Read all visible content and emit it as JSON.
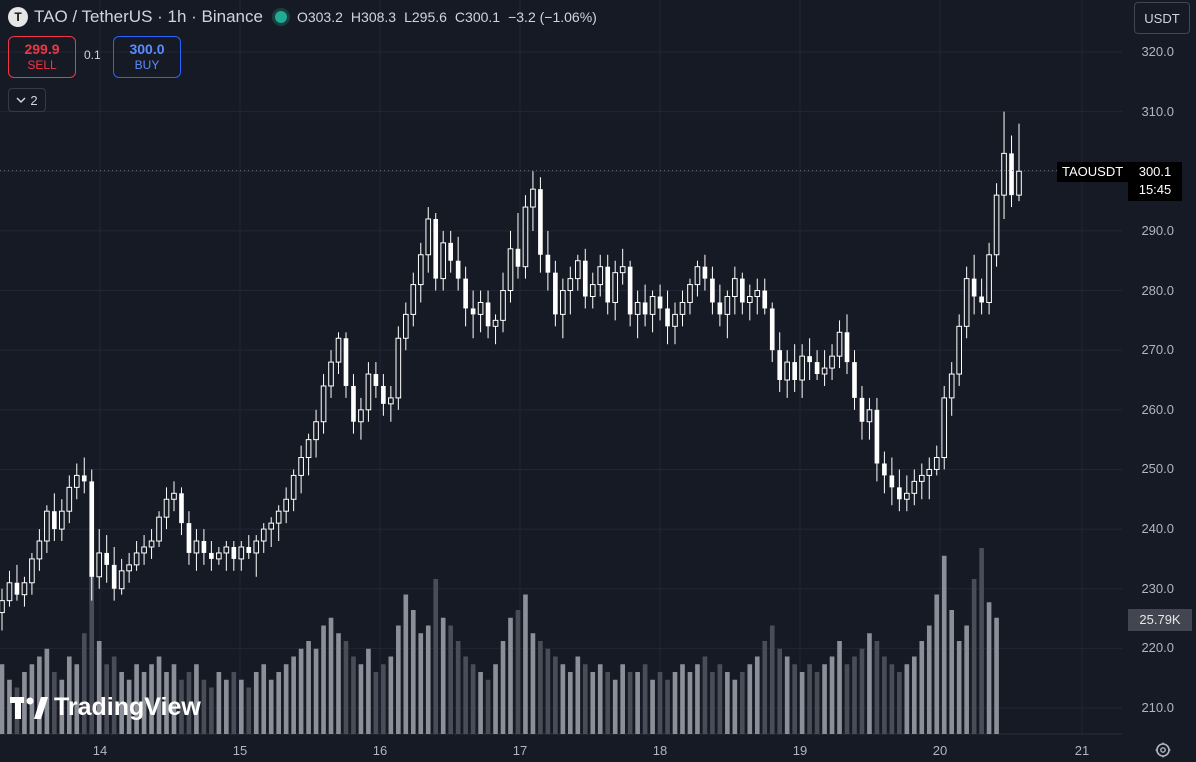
{
  "header": {
    "symbol_logo": "T",
    "title": "TAO / TetherUS · 1h · Binance",
    "market_status_icon": "green-dot-icon",
    "ohlc": {
      "o_label": "O",
      "o": "303.2",
      "h_label": "H",
      "h": "308.3",
      "l_label": "L",
      "l": "295.6",
      "c_label": "C",
      "c": "300.1",
      "change": "−3.2 (−1.06%)"
    }
  },
  "trade": {
    "sell_price": "299.9",
    "sell_label": "SELL",
    "spread": "0.1",
    "buy_price": "300.0",
    "buy_label": "BUY"
  },
  "indicators_toggle": {
    "icon": "chevron-down-icon",
    "count": "2"
  },
  "currency_selector": "USDT",
  "price_axis": [
    "320.0",
    "310.0",
    "300.0",
    "290.0",
    "280.0",
    "270.0",
    "260.0",
    "250.0",
    "240.0",
    "230.0",
    "220.0",
    "210.0"
  ],
  "time_axis": [
    "14",
    "15",
    "16",
    "17",
    "18",
    "19",
    "20",
    "21"
  ],
  "price_tag": {
    "symbol": "TAOUSDT",
    "price": "300.1",
    "countdown": "15:45"
  },
  "volume_tag": "25.79K",
  "watermark": "TradingView",
  "settings_icon": "gear-icon",
  "colors": {
    "background": "#161a25",
    "candle": "#ffffff",
    "grid": "#232733",
    "volume_dark": "#4a4d57",
    "volume_light": "#8c8f97"
  },
  "chart_data": {
    "type": "candlestick",
    "x_labels": [
      "14",
      "15",
      "16",
      "17",
      "18",
      "19",
      "20",
      "21"
    ],
    "ylim": [
      206,
      322
    ],
    "last_price": 300.1,
    "candles_ohlc": [
      [
        226,
        230,
        223,
        228
      ],
      [
        228,
        233,
        227,
        231
      ],
      [
        231,
        234,
        228,
        229
      ],
      [
        229,
        232,
        227,
        231
      ],
      [
        231,
        236,
        229,
        235
      ],
      [
        235,
        240,
        233,
        238
      ],
      [
        238,
        244,
        236,
        243
      ],
      [
        243,
        246,
        238,
        240
      ],
      [
        240,
        245,
        238,
        243
      ],
      [
        243,
        249,
        241,
        247
      ],
      [
        247,
        251,
        245,
        249
      ],
      [
        249,
        252,
        246,
        248
      ],
      [
        248,
        250,
        228,
        232
      ],
      [
        232,
        240,
        230,
        236
      ],
      [
        236,
        239,
        231,
        234
      ],
      [
        234,
        237,
        228,
        230
      ],
      [
        230,
        235,
        229,
        233
      ],
      [
        233,
        236,
        231,
        234
      ],
      [
        234,
        238,
        233,
        236
      ],
      [
        236,
        239,
        234,
        237
      ],
      [
        237,
        240,
        235,
        238
      ],
      [
        238,
        243,
        237,
        242
      ],
      [
        242,
        247,
        240,
        245
      ],
      [
        245,
        248,
        243,
        246
      ],
      [
        246,
        247,
        239,
        241
      ],
      [
        241,
        243,
        234,
        236
      ],
      [
        236,
        240,
        233,
        238
      ],
      [
        238,
        240,
        234,
        236
      ],
      [
        236,
        238,
        233,
        235
      ],
      [
        235,
        237,
        234,
        236
      ],
      [
        236,
        238,
        233,
        237
      ],
      [
        237,
        238,
        233,
        235
      ],
      [
        235,
        238,
        233,
        237
      ],
      [
        237,
        239,
        235,
        236
      ],
      [
        236,
        239,
        232,
        238
      ],
      [
        238,
        241,
        236,
        240
      ],
      [
        240,
        242,
        237,
        241
      ],
      [
        241,
        244,
        238,
        243
      ],
      [
        243,
        247,
        241,
        245
      ],
      [
        245,
        250,
        243,
        249
      ],
      [
        249,
        254,
        246,
        252
      ],
      [
        252,
        256,
        249,
        255
      ],
      [
        255,
        260,
        252,
        258
      ],
      [
        258,
        266,
        256,
        264
      ],
      [
        264,
        270,
        262,
        268
      ],
      [
        268,
        273,
        266,
        272
      ],
      [
        272,
        273,
        262,
        264
      ],
      [
        264,
        266,
        256,
        258
      ],
      [
        258,
        262,
        255,
        260
      ],
      [
        260,
        268,
        258,
        266
      ],
      [
        266,
        268,
        262,
        264
      ],
      [
        264,
        266,
        259,
        261
      ],
      [
        261,
        264,
        258,
        262
      ],
      [
        262,
        274,
        260,
        272
      ],
      [
        272,
        278,
        270,
        276
      ],
      [
        276,
        283,
        274,
        281
      ],
      [
        281,
        288,
        278,
        286
      ],
      [
        286,
        294,
        283,
        292
      ],
      [
        292,
        293,
        280,
        282
      ],
      [
        282,
        290,
        280,
        288
      ],
      [
        288,
        290,
        283,
        285
      ],
      [
        285,
        289,
        280,
        282
      ],
      [
        282,
        284,
        274,
        277
      ],
      [
        277,
        280,
        272,
        276
      ],
      [
        276,
        280,
        273,
        278
      ],
      [
        278,
        280,
        272,
        274
      ],
      [
        274,
        276,
        271,
        275
      ],
      [
        275,
        283,
        273,
        280
      ],
      [
        280,
        290,
        278,
        287
      ],
      [
        287,
        293,
        282,
        284
      ],
      [
        284,
        296,
        282,
        294
      ],
      [
        294,
        300,
        290,
        297
      ],
      [
        297,
        299,
        283,
        286
      ],
      [
        286,
        290,
        280,
        283
      ],
      [
        283,
        285,
        274,
        276
      ],
      [
        276,
        282,
        272,
        280
      ],
      [
        280,
        284,
        276,
        282
      ],
      [
        282,
        286,
        280,
        285
      ],
      [
        285,
        287,
        277,
        279
      ],
      [
        279,
        283,
        277,
        281
      ],
      [
        281,
        286,
        279,
        284
      ],
      [
        284,
        286,
        276,
        278
      ],
      [
        278,
        285,
        275,
        283
      ],
      [
        283,
        287,
        281,
        284
      ],
      [
        284,
        285,
        274,
        276
      ],
      [
        276,
        280,
        272,
        278
      ],
      [
        278,
        281,
        274,
        276
      ],
      [
        276,
        280,
        273,
        279
      ],
      [
        279,
        281,
        275,
        277
      ],
      [
        277,
        280,
        271,
        274
      ],
      [
        274,
        278,
        271,
        276
      ],
      [
        276,
        280,
        274,
        278
      ],
      [
        278,
        282,
        276,
        281
      ],
      [
        281,
        285,
        279,
        284
      ],
      [
        284,
        286,
        280,
        282
      ],
      [
        282,
        284,
        276,
        278
      ],
      [
        278,
        281,
        274,
        276
      ],
      [
        276,
        280,
        272,
        279
      ],
      [
        279,
        284,
        276,
        282
      ],
      [
        282,
        283,
        276,
        278
      ],
      [
        278,
        281,
        275,
        279
      ],
      [
        279,
        282,
        276,
        280
      ],
      [
        280,
        282,
        276,
        277
      ],
      [
        277,
        278,
        268,
        270
      ],
      [
        270,
        273,
        263,
        265
      ],
      [
        265,
        270,
        262,
        268
      ],
      [
        268,
        271,
        263,
        265
      ],
      [
        265,
        271,
        262,
        269
      ],
      [
        269,
        272,
        265,
        268
      ],
      [
        268,
        270,
        265,
        266
      ],
      [
        266,
        270,
        264,
        267
      ],
      [
        267,
        271,
        265,
        269
      ],
      [
        269,
        275,
        267,
        273
      ],
      [
        273,
        276,
        266,
        268
      ],
      [
        268,
        270,
        260,
        262
      ],
      [
        262,
        264,
        255,
        258
      ],
      [
        258,
        262,
        255,
        260
      ],
      [
        260,
        262,
        248,
        251
      ],
      [
        251,
        253,
        246,
        249
      ],
      [
        249,
        252,
        244,
        247
      ],
      [
        247,
        250,
        243,
        245
      ],
      [
        245,
        249,
        243,
        246
      ],
      [
        246,
        250,
        244,
        248
      ],
      [
        248,
        251,
        245,
        249
      ],
      [
        249,
        252,
        245,
        250
      ],
      [
        250,
        254,
        249,
        252
      ],
      [
        252,
        264,
        250,
        262
      ],
      [
        262,
        268,
        259,
        266
      ],
      [
        266,
        276,
        264,
        274
      ],
      [
        274,
        284,
        272,
        282
      ],
      [
        282,
        286,
        276,
        279
      ],
      [
        279,
        282,
        276,
        278
      ],
      [
        278,
        288,
        276,
        286
      ],
      [
        286,
        298,
        284,
        296
      ],
      [
        296,
        310,
        292,
        303
      ],
      [
        303,
        306,
        294,
        296
      ],
      [
        296,
        308,
        295,
        300
      ]
    ],
    "volumes": [
      9,
      7,
      6,
      8,
      9,
      10,
      11,
      8,
      7,
      10,
      9,
      13,
      22,
      12,
      9,
      10,
      8,
      7,
      9,
      8,
      9,
      10,
      8,
      9,
      7,
      8,
      9,
      7,
      6,
      8,
      7,
      8,
      7,
      6,
      8,
      9,
      7,
      8,
      9,
      10,
      11,
      12,
      11,
      14,
      15,
      13,
      12,
      10,
      9,
      11,
      8,
      9,
      10,
      14,
      18,
      16,
      13,
      14,
      20,
      15,
      14,
      12,
      10,
      9,
      8,
      7,
      9,
      12,
      15,
      16,
      18,
      13,
      12,
      11,
      10,
      9,
      8,
      10,
      9,
      8,
      9,
      8,
      7,
      9,
      8,
      8,
      9,
      7,
      8,
      7,
      8,
      9,
      8,
      9,
      10,
      8,
      9,
      8,
      7,
      8,
      9,
      10,
      12,
      14,
      11,
      10,
      9,
      8,
      9,
      8,
      9,
      10,
      12,
      9,
      10,
      11,
      13,
      12,
      10,
      9,
      8,
      9,
      10,
      12,
      14,
      18,
      23,
      16,
      12,
      14,
      20,
      24,
      17,
      15
    ]
  }
}
